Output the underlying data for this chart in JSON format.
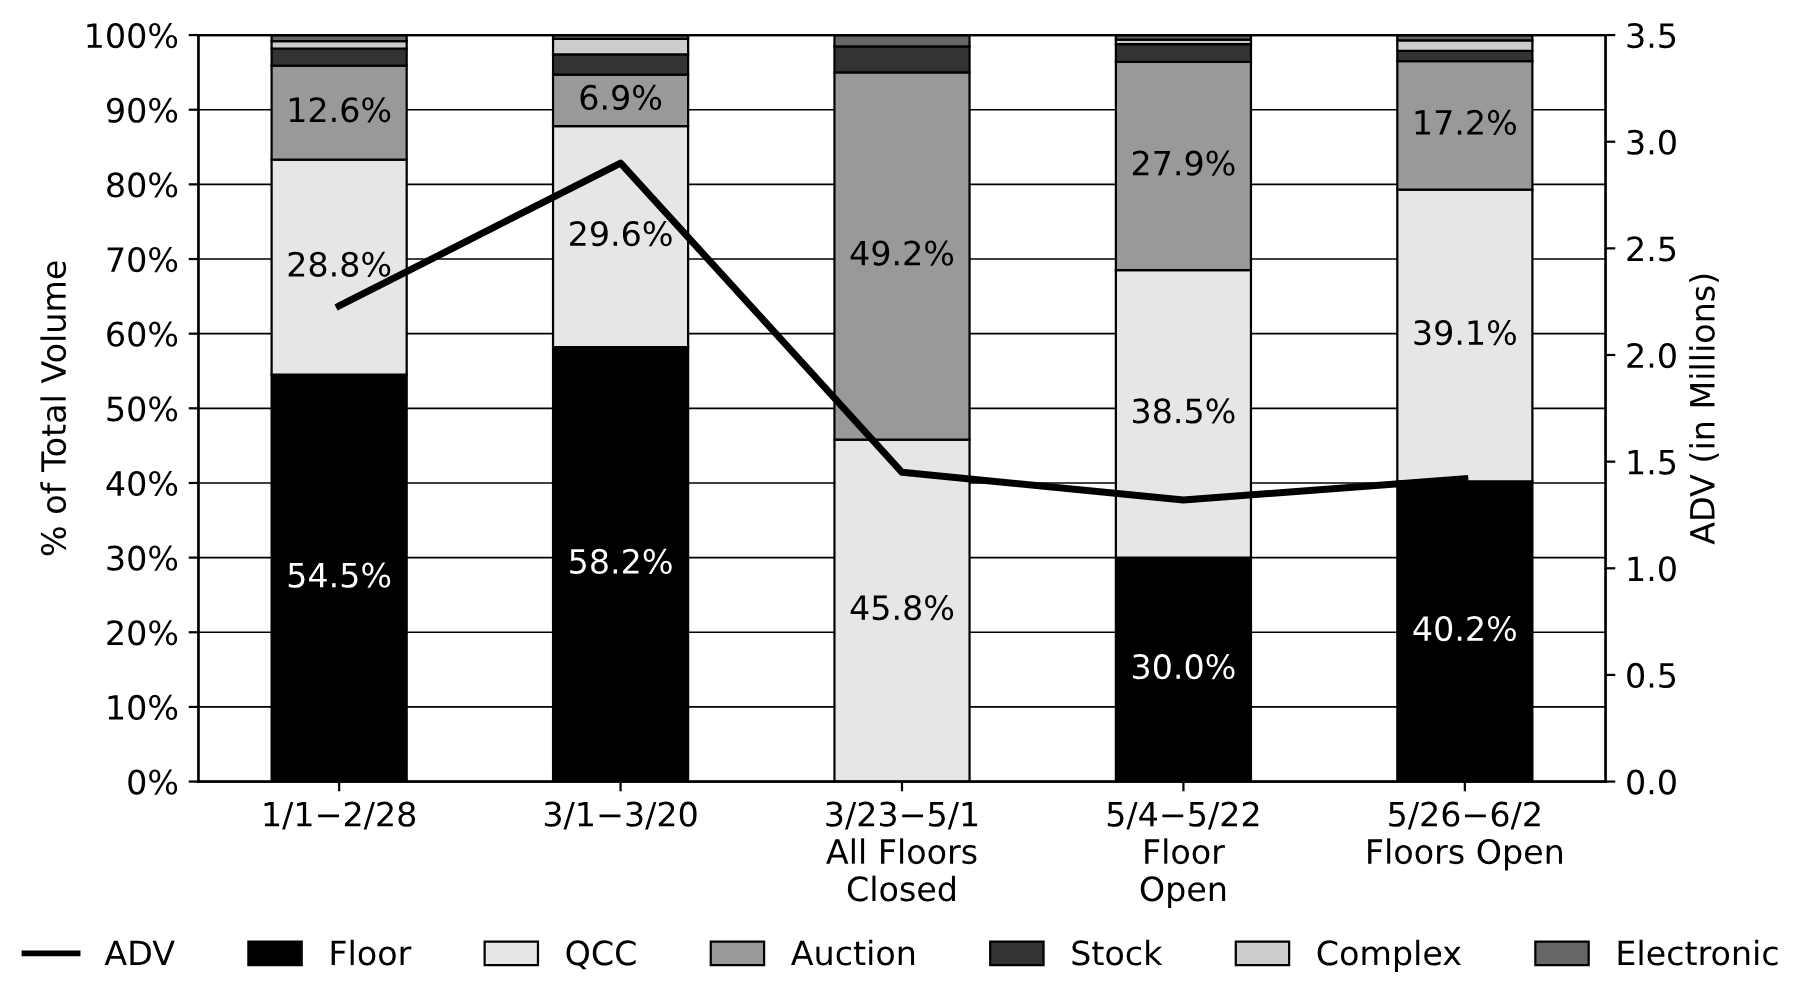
{
  "chart_data": {
    "type": "bar",
    "stacked": true,
    "ylabel": "% of Total Volume",
    "y2label": "ADV (in Millions)",
    "categories": [
      "1/1−2/28",
      "3/1−3/20",
      "3/23−5/1\nAll Floors\nClosed",
      "5/4−5/22\nFloor\nOpen",
      "5/26−6/2\nFloors Open"
    ],
    "ylim": [
      0,
      100
    ],
    "yticks": [
      {
        "value": 0,
        "label": "0%"
      },
      {
        "value": 10,
        "label": "10%"
      },
      {
        "value": 20,
        "label": "20%"
      },
      {
        "value": 30,
        "label": "30%"
      },
      {
        "value": 40,
        "label": "40%"
      },
      {
        "value": 50,
        "label": "50%"
      },
      {
        "value": 60,
        "label": "60%"
      },
      {
        "value": 70,
        "label": "70%"
      },
      {
        "value": 80,
        "label": "80%"
      },
      {
        "value": 90,
        "label": "90%"
      },
      {
        "value": 100,
        "label": "100%"
      }
    ],
    "y2lim": [
      0,
      3.5
    ],
    "y2ticks": [
      {
        "value": 0,
        "label": "0.0"
      },
      {
        "value": 0.5,
        "label": "0.5"
      },
      {
        "value": 1,
        "label": "1.0"
      },
      {
        "value": 1.5,
        "label": "1.5"
      },
      {
        "value": 2,
        "label": "2.0"
      },
      {
        "value": 2.5,
        "label": "2.5"
      },
      {
        "value": 3,
        "label": "3.0"
      },
      {
        "value": 3.5,
        "label": "3.5"
      }
    ],
    "grid": "y",
    "legend": "bottom",
    "series": [
      {
        "name": "ADV",
        "type": "line",
        "axis": "y2",
        "color": "#000000",
        "values": [
          2.23,
          2.9,
          1.45,
          1.32,
          1.42
        ]
      },
      {
        "name": "Floor",
        "color": "#000000",
        "values": [
          54.5,
          58.2,
          0,
          30.0,
          40.2
        ],
        "value_labels": [
          "54.5%",
          "58.2%",
          null,
          "30.0%",
          "40.2%"
        ]
      },
      {
        "name": "QCC",
        "color": "#e6e6e6",
        "values": [
          28.8,
          29.6,
          45.8,
          38.5,
          39.1
        ],
        "value_labels": [
          "28.8%",
          "29.6%",
          "45.8%",
          "38.5%",
          "39.1%"
        ]
      },
      {
        "name": "Auction",
        "color": "#999999",
        "values": [
          12.6,
          6.9,
          49.2,
          27.9,
          17.2
        ],
        "value_labels": [
          "12.6%",
          "6.9%",
          "49.2%",
          "27.9%",
          "17.2%"
        ]
      },
      {
        "name": "Stock",
        "color": "#333333",
        "values": [
          2.3,
          2.7,
          3.5,
          2.4,
          1.4
        ]
      },
      {
        "name": "Complex",
        "color": "#cccccc",
        "values": [
          1.0,
          2.1,
          0,
          0.6,
          1.4
        ]
      },
      {
        "name": "Electronic",
        "color": "#666666",
        "values": [
          0.8,
          0.5,
          1.5,
          0.6,
          0.7
        ]
      }
    ]
  }
}
